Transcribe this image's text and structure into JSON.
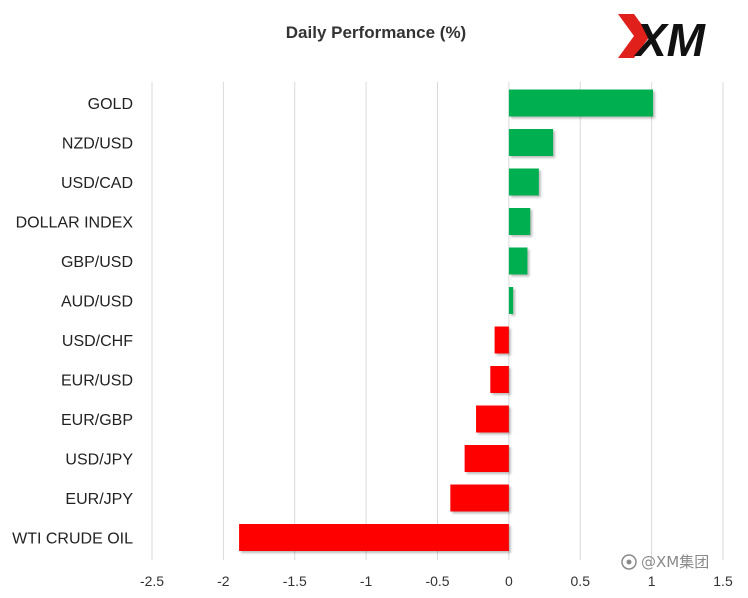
{
  "chart_data": {
    "type": "bar",
    "orientation": "horizontal",
    "title": "Daily Performance (%)",
    "categories": [
      "GOLD",
      "NZD/USD",
      "USD/CAD",
      "DOLLAR INDEX",
      "GBP/USD",
      "AUD/USD",
      "USD/CHF",
      "EUR/USD",
      "EUR/GBP",
      "USD/JPY",
      "EUR/JPY",
      "WTI CRUDE OIL"
    ],
    "values": [
      1.01,
      0.31,
      0.21,
      0.15,
      0.13,
      0.03,
      -0.1,
      -0.13,
      -0.23,
      -0.31,
      -0.41,
      -1.89
    ],
    "xlim": [
      -2.5,
      1.5
    ],
    "x_ticks": [
      -2.5,
      -2,
      -1.5,
      -1,
      -0.5,
      0,
      0.5,
      1,
      1.5
    ],
    "x_tick_labels": [
      "-2.5",
      "-2",
      "-1.5",
      "-1",
      "-0.5",
      "0",
      "0.5",
      "1",
      "1.5"
    ],
    "grid": "vertical",
    "legend": "none",
    "colors": {
      "positive": "#00b050",
      "negative": "#ff0000",
      "grid": "#d9d9d9",
      "logo_accent": "#e0201b"
    }
  },
  "logo": {
    "text": "XM",
    "icon": "xm-logo-icon"
  },
  "watermark": {
    "text": "@XM集团",
    "icon": "weibo-icon"
  }
}
